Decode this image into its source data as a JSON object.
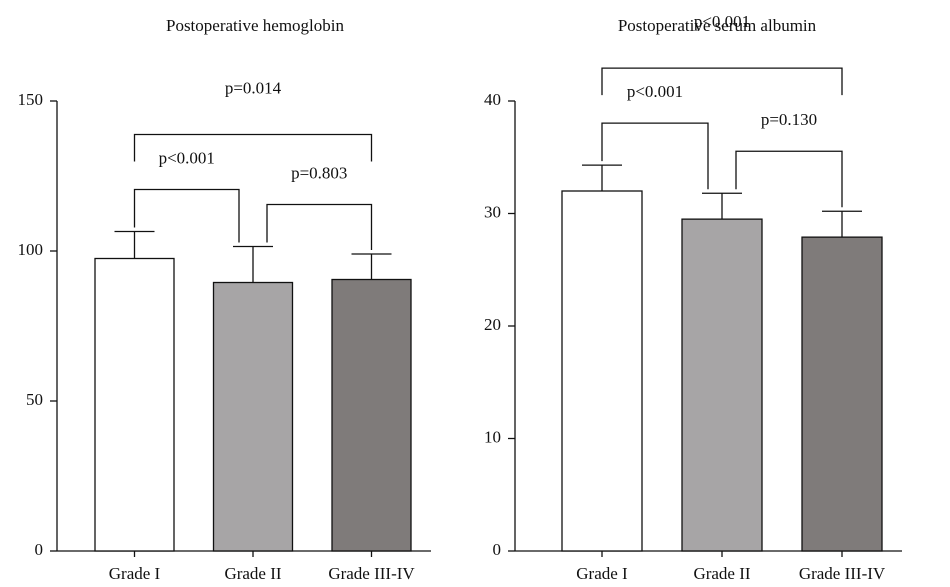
{
  "chart_data": [
    {
      "type": "bar",
      "title": "Postoperative hemoglobin",
      "categories": [
        "Grade I",
        "Grade II",
        "Grade III-IV"
      ],
      "values": [
        97.5,
        89.5,
        90.5
      ],
      "errors": [
        9,
        12,
        8.5
      ],
      "colors": [
        "#ffffff",
        "#a7a5a6",
        "#7f7b7a"
      ],
      "ylim": [
        0,
        150
      ],
      "yticks": [
        0,
        50,
        100,
        150
      ],
      "comparisons": [
        {
          "groups": [
            "Grade I",
            "Grade II"
          ],
          "label": "p<0.001"
        },
        {
          "groups": [
            "Grade II",
            "Grade III-IV"
          ],
          "label": "p=0.803"
        },
        {
          "groups": [
            "Grade I",
            "Grade III-IV"
          ],
          "label": "p=0.014"
        }
      ]
    },
    {
      "type": "bar",
      "title": "Postoperative serum albumin",
      "categories": [
        "Grade I",
        "Grade II",
        "Grade III-IV"
      ],
      "values": [
        32,
        29.5,
        27.9
      ],
      "errors": [
        2.3,
        2.3,
        2.3
      ],
      "colors": [
        "#ffffff",
        "#a7a5a6",
        "#7f7b7a"
      ],
      "ylim": [
        0,
        40
      ],
      "yticks": [
        0,
        10,
        20,
        30,
        40
      ],
      "comparisons": [
        {
          "groups": [
            "Grade I",
            "Grade II"
          ],
          "label": "p<0.001"
        },
        {
          "groups": [
            "Grade II",
            "Grade III-IV"
          ],
          "label": "p=0.130"
        },
        {
          "groups": [
            "Grade I",
            "Grade III-IV"
          ],
          "label": "p<0.001"
        }
      ]
    }
  ]
}
